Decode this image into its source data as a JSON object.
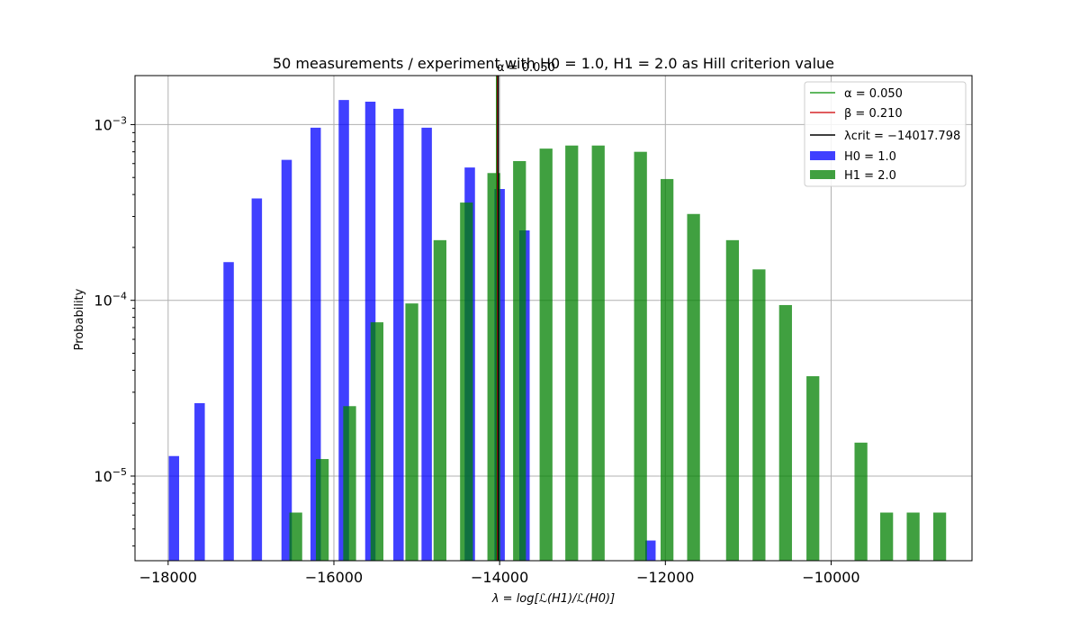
{
  "chart_data": {
    "type": "bar",
    "title": "50 measurements / experiment with H0 = 1.0, H1 = 2.0 as Hill criterion value",
    "xlabel": "λ = log[ℒ(H1)/ℒ(H0)]",
    "ylabel": "Probability",
    "xlim": [
      -18400,
      -8300
    ],
    "ylim": [
      3.3e-06,
      0.0019
    ],
    "yscale": "log",
    "grid": true,
    "legend_position": "upper right",
    "x_ticks": [
      {
        "value": -18000,
        "label": "−18000"
      },
      {
        "value": -16000,
        "label": "−16000"
      },
      {
        "value": -14000,
        "label": "−14000"
      },
      {
        "value": -12000,
        "label": "−12000"
      },
      {
        "value": -10000,
        "label": "−10000"
      }
    ],
    "y_ticks": [
      {
        "value": 1e-05,
        "base": "10",
        "exp": "−5"
      },
      {
        "value": 0.0001,
        "base": "10",
        "exp": "−4"
      },
      {
        "value": 0.001,
        "base": "10",
        "exp": "−3"
      }
    ],
    "series": [
      {
        "name": "H0 = 1.0",
        "color": "#0000ff",
        "opacity": 0.75,
        "bar_width": 125,
        "x": [
          -17930,
          -17620,
          -17270,
          -16930,
          -16570,
          -16220,
          -15880,
          -15560,
          -15220,
          -14880,
          -14360,
          -14000,
          -13700,
          -12180
        ],
        "values": [
          1.3e-05,
          2.6e-05,
          0.000165,
          0.00038,
          0.00063,
          0.00096,
          0.00138,
          0.00135,
          0.00123,
          0.00096,
          0.00057,
          0.00043,
          0.00025,
          4.3e-06
        ]
      },
      {
        "name": "H1 = 2.0",
        "color": "#008000",
        "opacity": 0.75,
        "bar_width": 155,
        "x": [
          -16460,
          -16140,
          -15810,
          -15480,
          -15060,
          -14720,
          -14400,
          -14070,
          -13760,
          -13440,
          -13130,
          -12810,
          -12300,
          -11980,
          -11660,
          -11190,
          -10870,
          -10550,
          -10220,
          -9640,
          -9330,
          -9010,
          -8690
        ],
        "values": [
          6.2e-06,
          1.25e-05,
          2.5e-05,
          7.5e-05,
          9.6e-05,
          0.00022,
          0.00036,
          0.00053,
          0.00062,
          0.00073,
          0.00076,
          0.00076,
          0.0007,
          0.00049,
          0.00031,
          0.00022,
          0.00015,
          9.4e-05,
          3.7e-05,
          1.55e-05,
          6.2e-06,
          6.2e-06,
          6.2e-06
        ]
      }
    ],
    "vertical_lines": [
      {
        "name": "alpha",
        "x": -14035,
        "color": "#008000"
      },
      {
        "name": "beta",
        "x": -14025,
        "color": "#d62728"
      },
      {
        "name": "lambda_crit",
        "x": -14017.798,
        "color": "#000000"
      }
    ],
    "annotation": {
      "text": "α = 0.050",
      "x": -14017.798
    },
    "legend": [
      {
        "kind": "line",
        "color": "#2ca02c",
        "label": "α = 0.050"
      },
      {
        "kind": "line",
        "color": "#d62728",
        "label": "β = 0.210"
      },
      {
        "kind": "line",
        "color": "#000000",
        "label": "λcrit = −14017.798"
      },
      {
        "kind": "patch",
        "color": "#0000ff",
        "label": "H0 = 1.0"
      },
      {
        "kind": "patch",
        "color": "#008000",
        "label": "H1 = 2.0"
      }
    ]
  }
}
